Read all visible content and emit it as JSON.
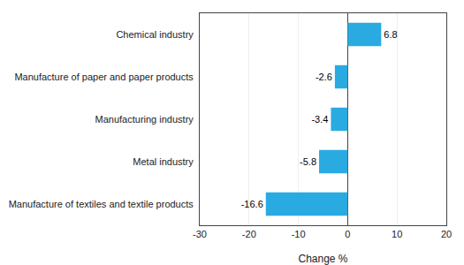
{
  "chart_data": {
    "type": "bar",
    "orientation": "horizontal",
    "categories": [
      "Manufacture of textiles and textile products",
      "Metal industry",
      "Manufacturing industry",
      "Manufacture of paper and paper products",
      "Chemical industry"
    ],
    "values": [
      -16.6,
      -5.8,
      -3.4,
      -2.6,
      6.8
    ],
    "color": "#29abe2",
    "xlabel": "Change %",
    "xlim": [
      -30,
      20
    ],
    "xticks": [
      -30,
      -20,
      -10,
      0,
      10,
      20
    ],
    "grid": true,
    "data_labels": true
  }
}
